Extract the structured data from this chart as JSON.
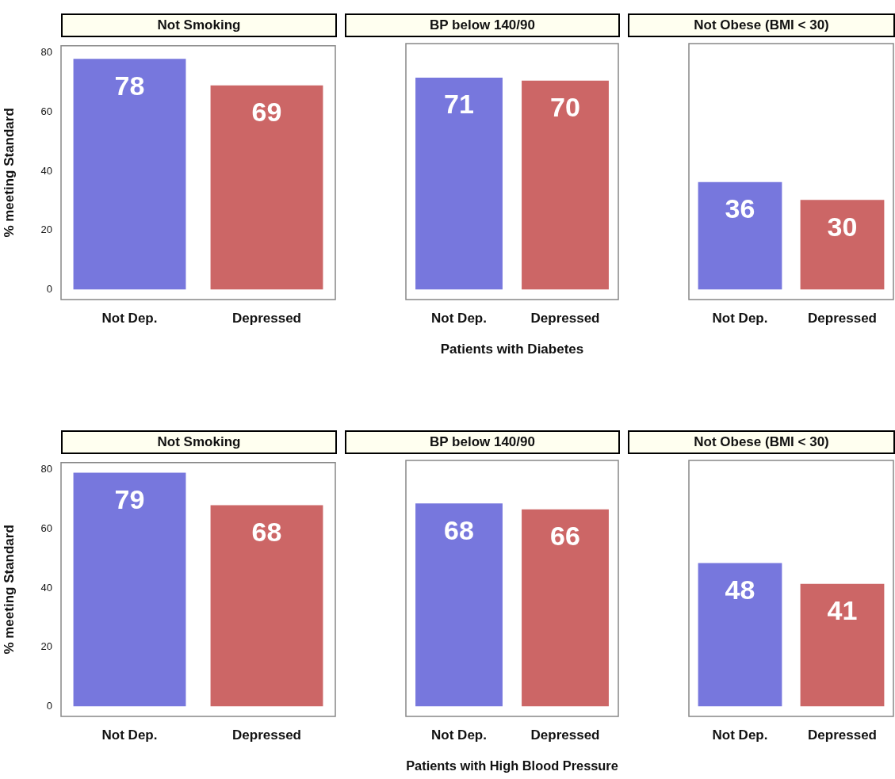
{
  "chart_data": [
    {
      "type": "bar",
      "title": "Not Smoking",
      "ylabel": "% meeting Standard",
      "categories": [
        "Not Dep.",
        "Depressed"
      ],
      "values": [
        78,
        69
      ],
      "colors": [
        "#7777dd",
        "#cc6666"
      ],
      "ylim": [
        -3.4,
        82.4
      ],
      "yticks": [
        0,
        20,
        40,
        60,
        80
      ],
      "data_labels": true
    },
    {
      "type": "bar",
      "title": "BP below 140/90",
      "xlabel": "Patients with Diabetes",
      "categories": [
        "Not Dep.",
        "Depressed"
      ],
      "values": [
        71,
        70
      ],
      "colors": [
        "#7777dd",
        "#cc6666"
      ],
      "ylim": [
        -3.4,
        82.4
      ],
      "yticks": [
        0,
        20,
        40,
        60,
        80
      ],
      "data_labels": true,
      "tick_labels": "x"
    },
    {
      "type": "bar",
      "title": "Not Obese (BMI < 30)",
      "categories": [
        "Not Dep.",
        "Depressed"
      ],
      "values": [
        36,
        30
      ],
      "colors": [
        "#7777dd",
        "#cc6666"
      ],
      "ylim": [
        -3.4,
        82.4
      ],
      "yticks": [
        0,
        20,
        40,
        60,
        80
      ],
      "data_labels": true,
      "tick_labels": "x"
    },
    {
      "type": "bar",
      "title": "Not Smoking",
      "ylabel": "% meeting Standard",
      "categories": [
        "Not Dep.",
        "Depressed"
      ],
      "values": [
        79,
        68
      ],
      "colors": [
        "#7777dd",
        "#cc6666"
      ],
      "ylim": [
        -3.4,
        82.4
      ],
      "yticks": [
        0,
        20,
        40,
        60,
        80
      ],
      "data_labels": true
    },
    {
      "type": "bar",
      "title": "BP below 140/90",
      "xlabel": "Patients with High Blood Pressure",
      "categories": [
        "Not Dep.",
        "Depressed"
      ],
      "values": [
        68,
        66
      ],
      "colors": [
        "#7777dd",
        "#cc6666"
      ],
      "ylim": [
        -3.4,
        82.4
      ],
      "yticks": [
        0,
        20,
        40,
        60,
        80
      ],
      "data_labels": true,
      "tick_labels": "x"
    },
    {
      "type": "bar",
      "title": "Not Obese (BMI < 30)",
      "categories": [
        "Not Dep.",
        "Depressed"
      ],
      "values": [
        48,
        41
      ],
      "colors": [
        "#7777dd",
        "#cc6666"
      ],
      "ylim": [
        -3.4,
        82.4
      ],
      "yticks": [
        0,
        20,
        40,
        60,
        80
      ],
      "data_labels": true,
      "tick_labels": "x"
    }
  ]
}
